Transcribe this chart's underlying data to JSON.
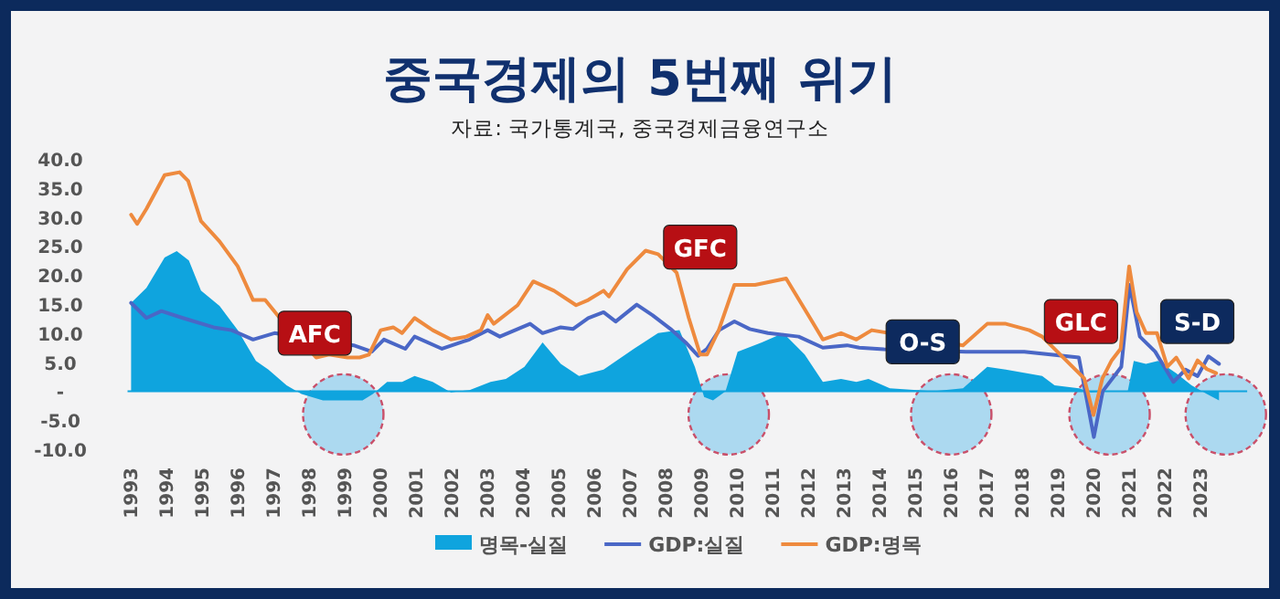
{
  "chart_data": {
    "type": "line",
    "title": "중국경제의 5번째 위기",
    "subtitle": "자료: 국가통계국, 중국경제금융연구소",
    "xlim": [
      1992.9,
      2024.3
    ],
    "xticks": [
      1993,
      1994,
      1995,
      1996,
      1997,
      1998,
      1999,
      2000,
      2001,
      2002,
      2003,
      2004,
      2005,
      2006,
      2007,
      2008,
      2009,
      2010,
      2011,
      2012,
      2013,
      2014,
      2015,
      2016,
      2017,
      2018,
      2019,
      2020,
      2021,
      2022,
      2023
    ],
    "ylim": [
      -10,
      40
    ],
    "yticks": [
      {
        "value": -10,
        "label": "-10.0"
      },
      {
        "value": -5,
        "label": "-5.0"
      },
      {
        "value": 0,
        "label": "-"
      },
      {
        "value": 5,
        "label": "5.0"
      },
      {
        "value": 10,
        "label": "10.0"
      },
      {
        "value": 15,
        "label": "15.0"
      },
      {
        "value": 20,
        "label": "20.0"
      },
      {
        "value": 25,
        "label": "25.0"
      },
      {
        "value": 30,
        "label": "30.0"
      },
      {
        "value": 35,
        "label": "35.0"
      },
      {
        "value": 40,
        "label": "40.0"
      }
    ],
    "grid": false,
    "legend": "bottom",
    "ref_lines": [
      {
        "axis": "y",
        "value": 0,
        "color": "#0fa4de"
      }
    ],
    "series": [
      {
        "name": "명목-실질",
        "type": "area",
        "color": "#0fa4de",
        "x": [
          1993.0,
          1993.43,
          1993.94,
          1994.28,
          1994.62,
          1994.96,
          1995.48,
          1995.99,
          1996.5,
          1996.85,
          1997.36,
          1997.78,
          1998.38,
          1999.49,
          1999.78,
          2000.18,
          2000.6,
          2000.95,
          2001.46,
          2001.97,
          2002.49,
          2003.08,
          2003.51,
          2004.03,
          2004.54,
          2005.05,
          2005.56,
          2006.25,
          2007.1,
          2007.78,
          2008.38,
          2008.81,
          2009.07,
          2009.32,
          2009.67,
          2010.01,
          2010.69,
          2011.29,
          2011.89,
          2012.4,
          2012.91,
          2013.34,
          2013.68,
          2014.28,
          2015.48,
          2016.33,
          2017.01,
          2017.53,
          2018.55,
          2018.9,
          2019.58,
          2019.92,
          2020.43,
          2020.95,
          2021.12,
          2021.46,
          2021.8,
          2022.31,
          2022.74,
          2023.17,
          2023.51
        ],
        "values": [
          15.2,
          17.8,
          23.0,
          24.1,
          22.5,
          17.3,
          14.7,
          10.5,
          5.2,
          3.7,
          1.0,
          -0.5,
          -1.6,
          -1.6,
          -0.5,
          1.6,
          1.6,
          2.6,
          1.6,
          -0.2,
          0.2,
          1.6,
          2.1,
          4.2,
          8.4,
          4.7,
          2.6,
          3.7,
          7.3,
          10.0,
          10.5,
          4.2,
          -1.0,
          -1.6,
          0,
          6.8,
          8.4,
          10.0,
          6.3,
          1.6,
          2.1,
          1.6,
          2.1,
          0.5,
          0,
          0.5,
          4.2,
          3.7,
          2.6,
          1.0,
          0.5,
          -0.2,
          0,
          0,
          5.2,
          4.7,
          5.2,
          3.1,
          1.0,
          -0.5,
          -1.6
        ]
      },
      {
        "name": "GDP:실질",
        "type": "line",
        "color": "#4a67c6",
        "x": [
          1993.0,
          1993.43,
          1993.85,
          1994.45,
          1995.31,
          1995.82,
          1996.42,
          1997.02,
          1999.24,
          1999.75,
          2000.09,
          2000.69,
          2000.95,
          2001.72,
          2002.49,
          2003.0,
          2003.34,
          2004.19,
          2004.54,
          2005.05,
          2005.39,
          2005.82,
          2006.25,
          2006.59,
          2007.18,
          2007.62,
          2008.13,
          2008.55,
          2008.9,
          2009.15,
          2009.49,
          2009.92,
          2010.35,
          2010.86,
          2011.72,
          2012.4,
          2013.08,
          2013.42,
          2014.11,
          2016.42,
          2018.05,
          2019.58,
          2020.0,
          2020.25,
          2020.77,
          2021.0,
          2021.29,
          2021.72,
          2022.23,
          2022.57,
          2022.91,
          2023.21,
          2023.51
        ],
        "values": [
          15.2,
          12.6,
          13.8,
          12.6,
          11.0,
          10.5,
          8.9,
          10.0,
          7.9,
          6.8,
          8.9,
          7.3,
          9.4,
          7.3,
          8.9,
          10.5,
          9.4,
          11.6,
          10.0,
          11.0,
          10.7,
          12.6,
          13.6,
          12.0,
          14.9,
          13.1,
          10.7,
          8.4,
          6.1,
          7.3,
          10.5,
          12.0,
          10.7,
          10.0,
          9.4,
          7.5,
          7.9,
          7.5,
          7.2,
          6.8,
          6.8,
          5.8,
          -7.9,
          0,
          4.2,
          18.3,
          9.4,
          6.8,
          1.6,
          3.7,
          2.6,
          6.0,
          4.7
        ]
      },
      {
        "name": "GDP:명목",
        "type": "line",
        "color": "#ee8a3e",
        "x": [
          1993.0,
          1993.17,
          1993.43,
          1993.94,
          1994.36,
          1994.6,
          1994.96,
          1995.48,
          1995.99,
          1996.42,
          1996.76,
          1997.17,
          1998.19,
          1998.55,
          1999.07,
          1999.41,
          1999.67,
          2000.0,
          2000.35,
          2000.6,
          2000.95,
          2001.46,
          2001.97,
          2002.4,
          2002.81,
          2003.0,
          2003.17,
          2003.84,
          2004.28,
          2004.86,
          2005.48,
          2005.82,
          2006.25,
          2006.4,
          2006.91,
          2007.43,
          2007.78,
          2008.3,
          2008.64,
          2008.96,
          2009.15,
          2009.48,
          2009.92,
          2010.5,
          2011.37,
          2012.04,
          2012.4,
          2012.91,
          2013.34,
          2013.77,
          2016.33,
          2017.01,
          2017.53,
          2018.19,
          2018.55,
          2019.73,
          2019.99,
          2020.24,
          2020.5,
          2020.75,
          2020.99,
          2021.2,
          2021.46,
          2021.77,
          2022.06,
          2022.31,
          2022.66,
          2022.91,
          2023.17,
          2023.43
        ],
        "values": [
          30.4,
          28.8,
          31.4,
          37.2,
          37.7,
          36.2,
          29.3,
          25.8,
          21.5,
          15.7,
          15.7,
          12.6,
          5.8,
          6.3,
          5.8,
          5.8,
          6.3,
          10.5,
          11.0,
          10.0,
          12.6,
          10.5,
          8.9,
          9.4,
          10.5,
          13.1,
          11.6,
          14.8,
          18.9,
          17.3,
          14.8,
          15.7,
          17.3,
          16.3,
          21.0,
          24.2,
          23.6,
          20.4,
          12.6,
          6.3,
          6.3,
          10.5,
          18.3,
          18.3,
          19.4,
          12.6,
          8.9,
          10.0,
          8.9,
          10.5,
          7.9,
          11.6,
          11.6,
          10.5,
          9.4,
          2.2,
          -4.1,
          2.2,
          5.3,
          7.3,
          21.5,
          13.6,
          10.0,
          10.0,
          4.2,
          5.8,
          2.2,
          5.3,
          3.8,
          3.1
        ]
      }
    ],
    "annotations": [
      {
        "text": "AFC",
        "x": 1998.15,
        "y": 10
      },
      {
        "text": "GFC",
        "x": 2008.96,
        "y": 24.8
      },
      {
        "text": "O-S",
        "x": 2015.2,
        "y": 8.5
      },
      {
        "text": "GLC",
        "x": 2019.64,
        "y": 12
      },
      {
        "text": "S-D",
        "x": 2022.9,
        "y": 12
      }
    ]
  }
}
